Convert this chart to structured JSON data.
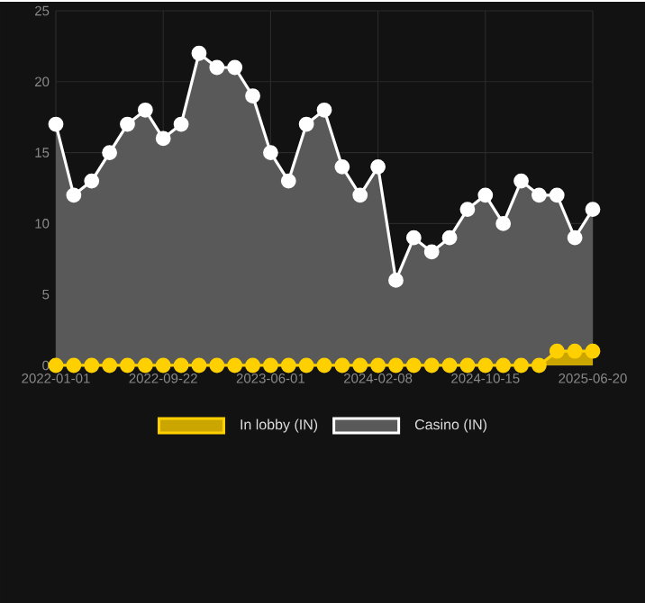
{
  "chart_data": {
    "type": "area",
    "categories": [
      "2022-01-01",
      null,
      null,
      null,
      null,
      null,
      "2022-09-22",
      null,
      null,
      null,
      null,
      null,
      "2023-06-01",
      null,
      null,
      null,
      null,
      null,
      "2024-02-08",
      null,
      null,
      null,
      null,
      null,
      "2024-10-15",
      null,
      null,
      null,
      null,
      null,
      "2025-06-20"
    ],
    "series": [
      {
        "name": "In lobby (IN)",
        "color": "#ffd000",
        "values": [
          0,
          0,
          0,
          0,
          0,
          0,
          0,
          0,
          0,
          0,
          0,
          0,
          0,
          0,
          0,
          0,
          0,
          0,
          0,
          0,
          0,
          0,
          0,
          0,
          0,
          0,
          0,
          0,
          1,
          1,
          1
        ]
      },
      {
        "name": "Casino (IN)",
        "color": "#ffffff",
        "values": [
          17,
          12,
          13,
          15,
          17,
          18,
          16,
          17,
          22,
          21,
          21,
          19,
          15,
          13,
          17,
          18,
          14,
          12,
          14,
          6,
          9,
          8,
          9,
          11,
          12,
          10,
          13,
          12,
          12,
          9,
          11
        ]
      }
    ],
    "ylim": [
      0,
      25
    ],
    "yticks": [
      0,
      5,
      10,
      15,
      20,
      25
    ],
    "grid": true,
    "legend": "bottom",
    "marker": "circle",
    "line_style": "solid"
  }
}
